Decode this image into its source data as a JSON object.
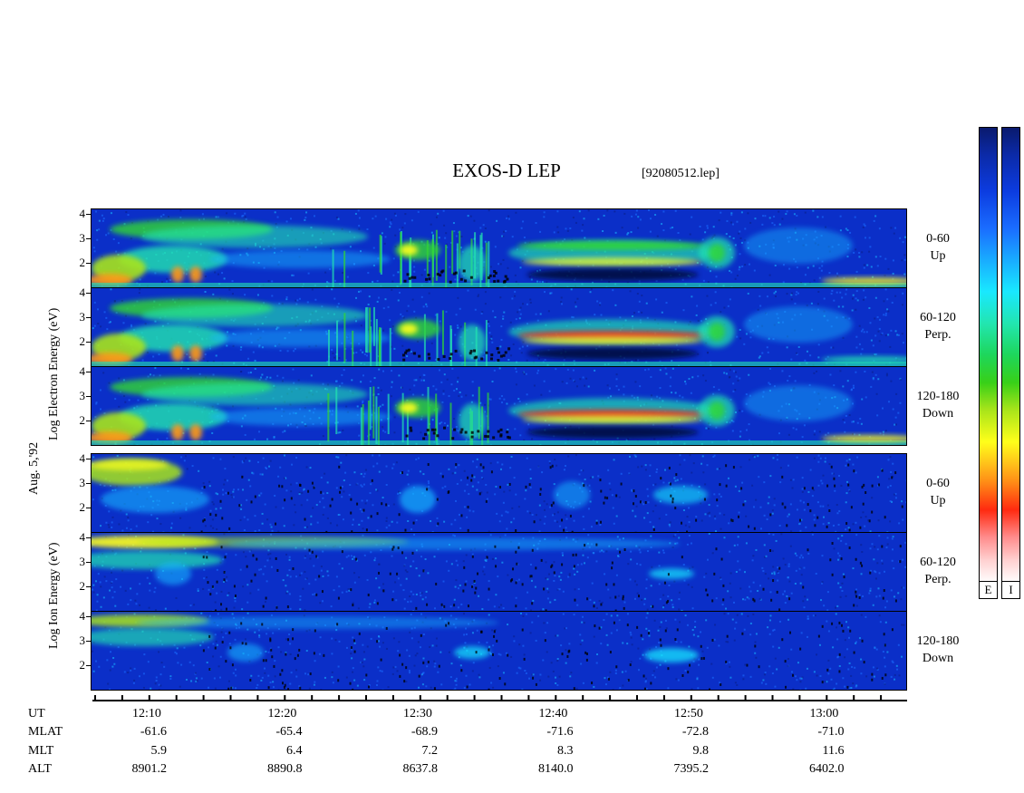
{
  "title": "EXOS-D LEP",
  "filename": "[92080512.lep]",
  "colors": {
    "background": "#ffffff",
    "spectrogram_base": "#0b2fc8",
    "axis": "#000000"
  },
  "left_labels": {
    "electron": "Log  Electron  Energy (eV)",
    "date": "Aug. 5,'92",
    "ion": "Log  Ion  Energy (eV)"
  },
  "colorbar": {
    "labels": [
      "E",
      "I"
    ]
  },
  "chart_data": {
    "type": "heatmap",
    "y_ticks": [
      "4",
      "3",
      "2"
    ],
    "panels": [
      {
        "species": "electron",
        "angle": "0-60",
        "direction": "Up"
      },
      {
        "species": "electron",
        "angle": "60-120",
        "direction": "Perp."
      },
      {
        "species": "electron",
        "angle": "120-180",
        "direction": "Down"
      },
      {
        "species": "ion",
        "angle": "0-60",
        "direction": "Up"
      },
      {
        "species": "ion",
        "angle": "60-120",
        "direction": "Perp."
      },
      {
        "species": "ion",
        "angle": "120-180",
        "direction": "Down"
      }
    ],
    "x_ticks": [
      "12:10",
      "12:20",
      "12:30",
      "12:40",
      "12:50",
      "13:00"
    ]
  },
  "ephemeris": {
    "rows": [
      {
        "label": "UT",
        "values": []
      },
      {
        "label": "MLAT",
        "values": [
          "-61.6",
          "-65.4",
          "-68.9",
          "-71.6",
          "-72.8",
          "-71.0"
        ]
      },
      {
        "label": "MLT",
        "values": [
          "5.9",
          "6.4",
          "7.2",
          "8.3",
          "9.8",
          "11.6"
        ]
      },
      {
        "label": "ALT",
        "values": [
          "8901.2",
          "8890.8",
          "8637.8",
          "8140.0",
          "7395.2",
          "6402.0"
        ]
      }
    ]
  }
}
